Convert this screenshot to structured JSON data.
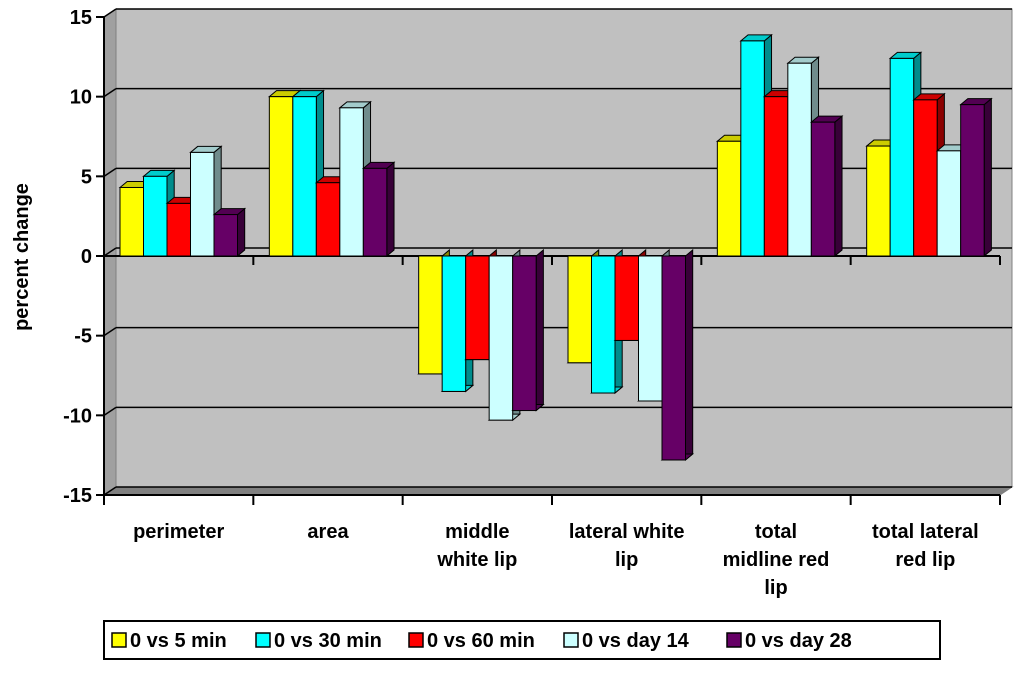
{
  "chart_data": {
    "type": "bar",
    "title": "",
    "xlabel": "",
    "ylabel": "percent change",
    "ylim": [
      -15,
      15
    ],
    "yticks": [
      15,
      10,
      5,
      0,
      -5,
      -10,
      -15
    ],
    "grid": true,
    "legend_position": "bottom",
    "categories": [
      [
        "perimeter"
      ],
      [
        "area"
      ],
      [
        "middle",
        "white lip"
      ],
      [
        "lateral white",
        "lip"
      ],
      [
        "total",
        "midline red",
        "lip"
      ],
      [
        "total lateral",
        "red lip"
      ]
    ],
    "series": [
      {
        "name": "0 vs 5 min",
        "color": "#FFFF00",
        "values": [
          4.3,
          10.0,
          -7.4,
          -6.7,
          7.2,
          6.9
        ]
      },
      {
        "name": "0 vs 30 min",
        "color": "#00FFFF",
        "values": [
          5.0,
          10.0,
          -8.5,
          -8.6,
          13.5,
          12.4
        ]
      },
      {
        "name": "0 vs 60 min",
        "color": "#FF0000",
        "values": [
          3.3,
          4.6,
          -6.5,
          -5.3,
          10.0,
          9.8
        ]
      },
      {
        "name": "0 vs day 14",
        "color": "#CCFFFF",
        "values": [
          6.5,
          9.3,
          -10.3,
          -9.1,
          12.1,
          6.6
        ]
      },
      {
        "name": "0 vs day 28",
        "color": "#660066",
        "values": [
          2.6,
          5.5,
          -9.7,
          -12.8,
          8.4,
          9.5
        ]
      }
    ]
  }
}
